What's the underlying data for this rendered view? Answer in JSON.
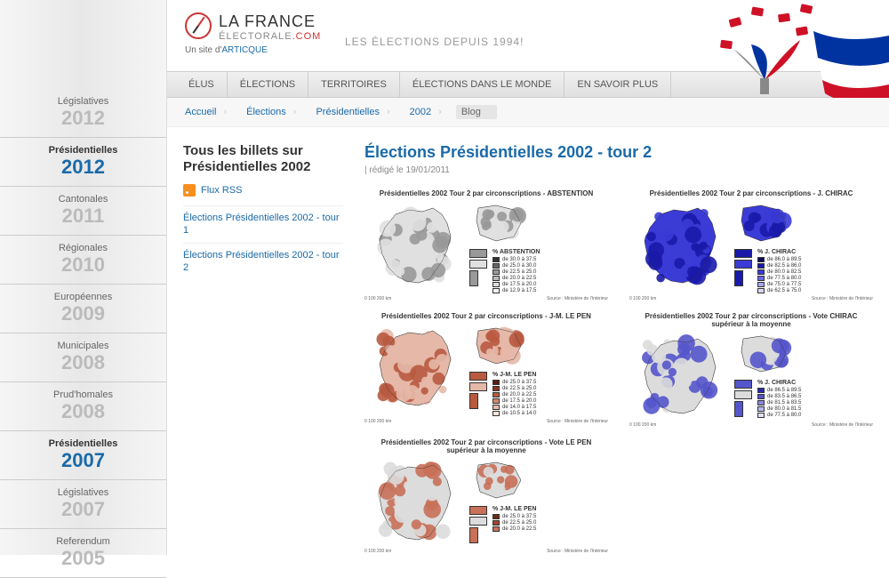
{
  "logo": {
    "line1": "LA FRANCE",
    "line2_a": "ÉLECTORALE",
    "line2_b": ".COM",
    "subtitle_prefix": "Un site d'",
    "subtitle_link": "ARTICQUE"
  },
  "tagline": "LES ÉLECTIONS DEPUIS 1994!",
  "nav": [
    "ÉLUS",
    "ÉLECTIONS",
    "TERRITOIRES",
    "ÉLECTIONS DANS LE MONDE",
    "EN SAVOIR PLUS"
  ],
  "breadcrumb": [
    "Accueil",
    "Élections",
    "Présidentielles",
    "2002",
    "Blog"
  ],
  "sidebar": [
    {
      "label": "Législatives",
      "year": "2012",
      "active": false
    },
    {
      "label": "Présidentielles",
      "year": "2012",
      "active": true
    },
    {
      "label": "Cantonales",
      "year": "2011",
      "active": false
    },
    {
      "label": "Régionales",
      "year": "2010",
      "active": false
    },
    {
      "label": "Européennes",
      "year": "2009",
      "active": false
    },
    {
      "label": "Municipales",
      "year": "2008",
      "active": false
    },
    {
      "label": "Prud'homales",
      "year": "2008",
      "active": false
    },
    {
      "label": "Présidentielles",
      "year": "2007",
      "active": true
    },
    {
      "label": "Législatives",
      "year": "2007",
      "active": false
    },
    {
      "label": "Referendum",
      "year": "2005",
      "active": false
    }
  ],
  "leftcol": {
    "heading": "Tous les billets sur Présidentielles 2002",
    "rss": "Flux RSS",
    "links": [
      "Élections Présidentielles 2002 - tour 1",
      "Élections Présidentielles 2002 - tour 2"
    ]
  },
  "article": {
    "title": "Élections Présidentielles 2002 - tour 2",
    "meta": "| rédigé le 19/01/2011"
  },
  "maps": [
    {
      "title": "Présidentielles 2002 Tour 2 par circonscriptions - ABSTENTION",
      "legend_title": "% ABSTENTION",
      "legend": [
        {
          "c": "#333333",
          "t": "de 30.0 à 37.5"
        },
        {
          "c": "#666666",
          "t": "de 25.0 à 30.0"
        },
        {
          "c": "#999999",
          "t": "de 22.5 à 25.0"
        },
        {
          "c": "#bbbbbb",
          "t": "de 20.0 à 22.5"
        },
        {
          "c": "#dddddd",
          "t": "de 17.5 à 20.0"
        },
        {
          "c": "#f5f5f5",
          "t": "de 12.9 à 17.5"
        }
      ],
      "fill": "#e0e0e0",
      "fill2": "#999"
    },
    {
      "title": "Présidentielles 2002 Tour 2 par circonscriptions - J. CHIRAC",
      "legend_title": "% J. CHIRAC",
      "legend": [
        {
          "c": "#0b0b5e",
          "t": "de 86.0 à 89.5"
        },
        {
          "c": "#1a1aaa",
          "t": "de 82.5 à 86.0"
        },
        {
          "c": "#3b3bd6",
          "t": "de 80.0 à 82.5"
        },
        {
          "c": "#6a6ae8",
          "t": "de 77.5 à 80.0"
        },
        {
          "c": "#a5a5f0",
          "t": "de 75.0 à 77.5"
        },
        {
          "c": "#d8d8f8",
          "t": "de 62.5 à 75.0"
        }
      ],
      "fill": "#3b3bd6",
      "fill2": "#1a1aaa"
    },
    {
      "title": "Présidentielles 2002 Tour 2 par circonscriptions - J-M. LE PEN",
      "legend_title": "% J-M. LE PEN",
      "legend": [
        {
          "c": "#5a1f0f",
          "t": "de 25.0 à 37.5"
        },
        {
          "c": "#8a3520",
          "t": "de 22.5 à 25.0"
        },
        {
          "c": "#b85a40",
          "t": "de 20.0 à 22.5"
        },
        {
          "c": "#d08870",
          "t": "de 17.5 à 20.0"
        },
        {
          "c": "#e5b8a8",
          "t": "de 14.0 à 17.5"
        },
        {
          "c": "#f5e5de",
          "t": "de 10.5 à 14.0"
        }
      ],
      "fill": "#e5b8a8",
      "fill2": "#b85a40"
    },
    {
      "title": "Présidentielles 2002 Tour 2 par circonscriptions - Vote CHIRAC supérieur à la moyenne",
      "legend_title": "% J. CHIRAC",
      "legend": [
        {
          "c": "#2a2aa8",
          "t": "de 86.5 à 89.5"
        },
        {
          "c": "#5555cc",
          "t": "de 83.5 à 86.5"
        },
        {
          "c": "#8888e0",
          "t": "de 81.5 à 83.5"
        },
        {
          "c": "#b8b8f0",
          "t": "de 80.0 à 81.5"
        },
        {
          "c": "#e0e0f8",
          "t": "de 77.5 à 80.0"
        }
      ],
      "fill": "#dcdcdc",
      "fill2": "#5555cc"
    },
    {
      "title": "Présidentielles 2002 Tour 2 par circonscriptions - Vote LE PEN supérieur à la moyenne",
      "legend_title": "% J-M. LE PEN",
      "legend": [
        {
          "c": "#6a2a18",
          "t": "de 25.0 à 37.5"
        },
        {
          "c": "#a04530",
          "t": "de 22.5 à 25.0"
        },
        {
          "c": "#c87058",
          "t": "de 20.0 à 22.5"
        }
      ],
      "fill": "#dcdcdc",
      "fill2": "#c87058"
    }
  ],
  "scale_label": "0   100   200 km",
  "source_label": "Source : Ministère de l'Intérieur"
}
